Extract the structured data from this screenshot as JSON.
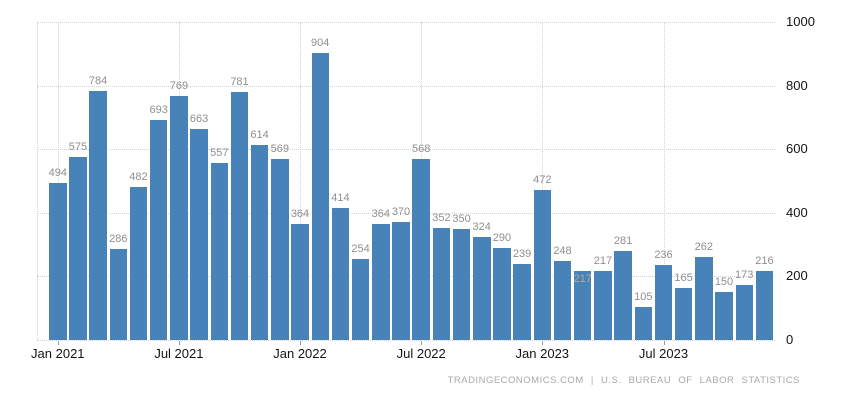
{
  "chart_data": {
    "type": "bar",
    "title": "",
    "categories": [
      "Jan 2021",
      "Feb 2021",
      "Mar 2021",
      "Apr 2021",
      "May 2021",
      "Jun 2021",
      "Jul 2021",
      "Aug 2021",
      "Sep 2021",
      "Oct 2021",
      "Nov 2021",
      "Dec 2021",
      "Jan 2022",
      "Feb 2022",
      "Mar 2022",
      "Apr 2022",
      "May 2022",
      "Jun 2022",
      "Jul 2022",
      "Aug 2022",
      "Sep 2022",
      "Oct 2022",
      "Nov 2022",
      "Dec 2022",
      "Jan 2023",
      "Feb 2023",
      "Mar 2023",
      "Apr 2023",
      "May 2023",
      "Jun 2023",
      "Jul 2023",
      "Aug 2023",
      "Sep 2023",
      "Oct 2023",
      "Nov 2023",
      "Dec 2023"
    ],
    "values": [
      494,
      575,
      784,
      286,
      482,
      693,
      769,
      663,
      557,
      781,
      614,
      569,
      364,
      904,
      414,
      254,
      364,
      370,
      568,
      352,
      350,
      324,
      290,
      239,
      472,
      248,
      217,
      217,
      281,
      105,
      236,
      165,
      262,
      150,
      173,
      216
    ],
    "value_labels_shown": true,
    "faded_label_index": 26,
    "x_tick_labels": [
      "Jan 2021",
      "Jul 2021",
      "Jan 2022",
      "Jul 2022",
      "Jan 2023",
      "Jul 2023"
    ],
    "x_tick_indices": [
      0,
      6,
      12,
      18,
      24,
      30
    ],
    "y_ticks": [
      0,
      200,
      400,
      600,
      800,
      1000
    ],
    "ylim": [
      0,
      1000
    ],
    "axis_side": "right",
    "grid_style": "dotted",
    "bar_color": "#4783b8",
    "value_label_color": "#8f8f8f",
    "axis_label_color": "#141414",
    "xlabel": "",
    "ylabel": ""
  },
  "footer": {
    "attribution": "TRADINGECONOMICS.COM | U.S. BUREAU OF LABOR STATISTICS"
  }
}
